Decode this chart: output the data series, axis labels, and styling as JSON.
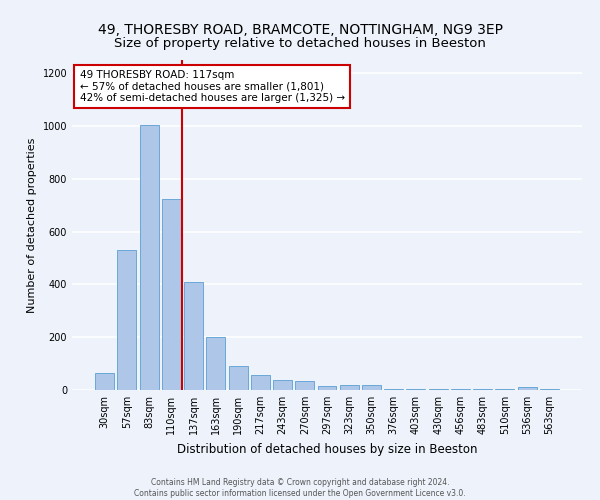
{
  "title1": "49, THORESBY ROAD, BRAMCOTE, NOTTINGHAM, NG9 3EP",
  "title2": "Size of property relative to detached houses in Beeston",
  "xlabel": "Distribution of detached houses by size in Beeston",
  "ylabel": "Number of detached properties",
  "footer1": "Contains HM Land Registry data © Crown copyright and database right 2024.",
  "footer2": "Contains public sector information licensed under the Open Government Licence v3.0.",
  "annotation_line1": "49 THORESBY ROAD: 117sqm",
  "annotation_line2": "← 57% of detached houses are smaller (1,801)",
  "annotation_line3": "42% of semi-detached houses are larger (1,325) →",
  "bar_labels": [
    "30sqm",
    "57sqm",
    "83sqm",
    "110sqm",
    "137sqm",
    "163sqm",
    "190sqm",
    "217sqm",
    "243sqm",
    "270sqm",
    "297sqm",
    "323sqm",
    "350sqm",
    "376sqm",
    "403sqm",
    "430sqm",
    "456sqm",
    "483sqm",
    "510sqm",
    "536sqm",
    "563sqm"
  ],
  "bar_values": [
    65,
    530,
    1005,
    725,
    410,
    200,
    90,
    57,
    37,
    33,
    14,
    20,
    18,
    2,
    2,
    2,
    2,
    2,
    2,
    10,
    2
  ],
  "bar_color": "#aec6e8",
  "bar_edge_color": "#5a9fd4",
  "vline_x": 3.5,
  "vline_color": "#cc0000",
  "annotation_box_color": "#ffffff",
  "annotation_box_edge": "#cc0000",
  "ylim": [
    0,
    1250
  ],
  "yticks": [
    0,
    200,
    400,
    600,
    800,
    1000,
    1200
  ],
  "bg_color": "#edf2fb",
  "plot_bg_color": "#edf2fb",
  "grid_color": "#ffffff",
  "title1_fontsize": 10,
  "title2_fontsize": 9.5,
  "xlabel_fontsize": 8.5,
  "ylabel_fontsize": 8,
  "tick_fontsize": 7,
  "ann_fontsize": 7.5
}
